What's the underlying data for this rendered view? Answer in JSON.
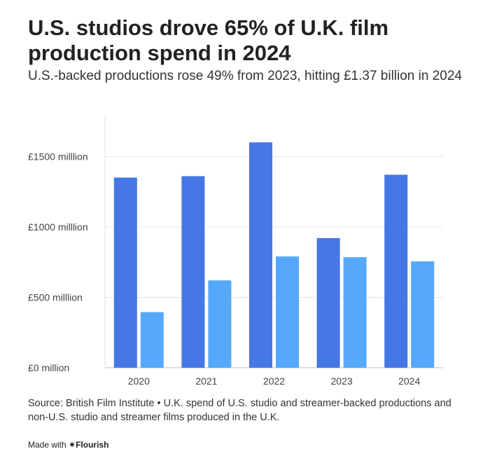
{
  "header": {
    "title": "U.S. studios drove 65% of U.K. film production spend in 2024",
    "subtitle": "U.S.-backed productions rose 49% from 2023, hitting £1.37 billion in 2024"
  },
  "chart_data": {
    "type": "bar",
    "categories": [
      "2020",
      "2021",
      "2022",
      "2023",
      "2024"
    ],
    "series": [
      {
        "values": [
          1350,
          1360,
          1600,
          920,
          1370
        ]
      },
      {
        "values": [
          395,
          620,
          790,
          785,
          755
        ]
      }
    ],
    "ylim": [
      0,
      1800
    ],
    "yticks": [
      0,
      500,
      1000,
      1500
    ],
    "ytick_labels": [
      "£0 million",
      "£500 milllion",
      "£1000 milllion",
      "£1500 milllion"
    ],
    "grid": true,
    "colors": [
      "#4577e6",
      "#56a8fb"
    ]
  },
  "footer": {
    "source": "Source: British Film Institute • U.K. spend of U.S. studio and streamer-backed productions and non-U.S. studio and streamer films produced in the U.K.",
    "made_with": "Made with",
    "brand": "✷Flourish"
  }
}
